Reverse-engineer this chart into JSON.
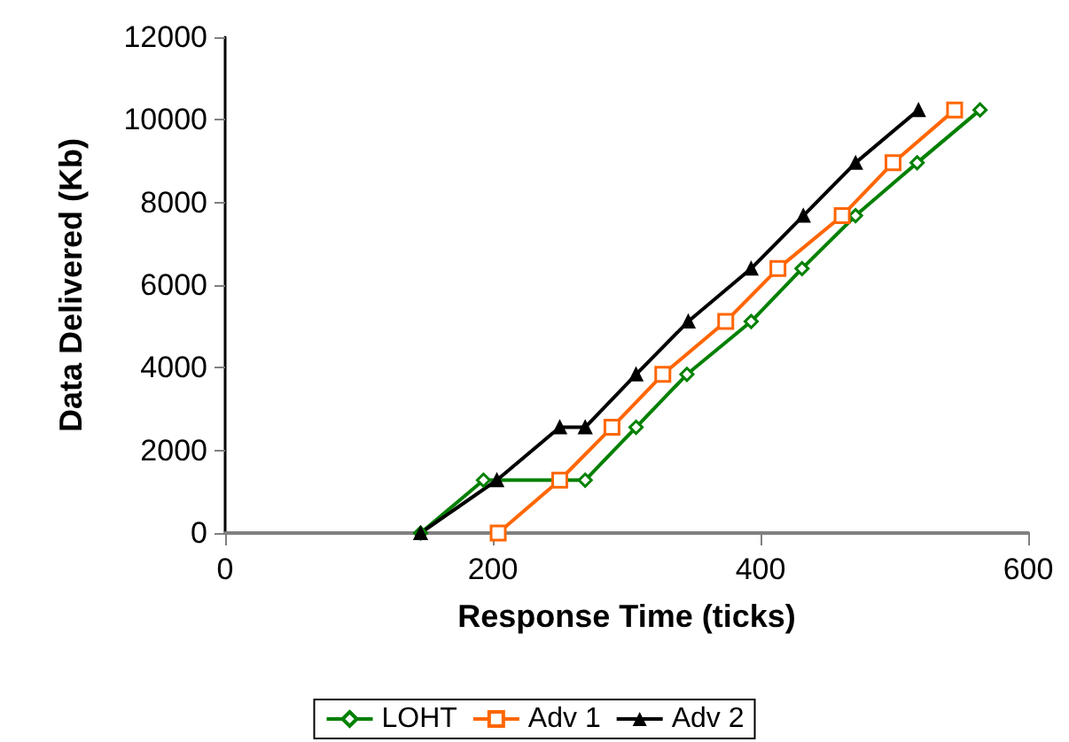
{
  "chart_data": {
    "type": "line",
    "xlabel": "Response Time (ticks)",
    "ylabel": "Data Delivered (Kb)",
    "xlim": [
      0,
      600
    ],
    "xticks": [
      0,
      200,
      400,
      600
    ],
    "ylim": [
      0,
      12000
    ],
    "yticks": [
      0,
      2000,
      4000,
      6000,
      8000,
      10000,
      12000
    ],
    "grid": false,
    "legend": "bottom",
    "line_style": "solid",
    "series": [
      {
        "name": "LOHT",
        "color": "#008000",
        "marker": "diamond",
        "x": [
          146,
          193,
          269,
          307,
          345,
          393,
          431,
          471,
          517,
          564
        ],
        "values": [
          0,
          1280,
          1280,
          2560,
          3840,
          5120,
          6400,
          7680,
          8960,
          10240
        ]
      },
      {
        "name": "Adv 1",
        "color": "#ff6600",
        "marker": "square",
        "x": [
          204,
          250,
          289,
          327,
          374,
          413,
          461,
          499,
          545
        ],
        "values": [
          0,
          1280,
          2560,
          3840,
          5120,
          6400,
          7680,
          8960,
          10240
        ]
      },
      {
        "name": "Adv 2",
        "color": "#000000",
        "marker": "triangle",
        "x": [
          146,
          203,
          250,
          269,
          307,
          346,
          393,
          432,
          471,
          518
        ],
        "values": [
          0,
          1280,
          2560,
          2560,
          3840,
          5120,
          6400,
          7680,
          8960,
          10240
        ]
      }
    ]
  }
}
